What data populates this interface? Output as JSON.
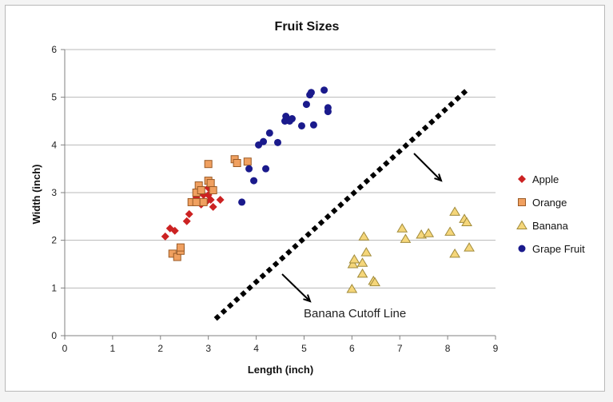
{
  "chart_data": {
    "type": "scatter",
    "title": "Fruit Sizes",
    "xlabel": "Length (inch)",
    "ylabel": "Width  (inch)",
    "xlim": [
      0,
      9
    ],
    "ylim": [
      0,
      6
    ],
    "xticks": [
      "0",
      "1",
      "2",
      "3",
      "4",
      "5",
      "6",
      "7",
      "8",
      "9"
    ],
    "yticks": [
      "0",
      "1",
      "2",
      "3",
      "4",
      "5",
      "6"
    ],
    "grid": "horizontal",
    "legend_position": "right",
    "series": [
      {
        "name": "Apple",
        "marker": "diamond",
        "color": "#cc2222",
        "points": [
          [
            2.1,
            2.08
          ],
          [
            2.2,
            2.25
          ],
          [
            2.3,
            2.2
          ],
          [
            2.55,
            2.4
          ],
          [
            2.6,
            2.55
          ],
          [
            2.75,
            2.9
          ],
          [
            2.9,
            2.95
          ],
          [
            2.95,
            2.8
          ],
          [
            3.0,
            3.1
          ],
          [
            3.0,
            2.95
          ],
          [
            3.05,
            2.85
          ],
          [
            3.1,
            2.7
          ],
          [
            3.25,
            2.85
          ],
          [
            2.85,
            2.75
          ]
        ]
      },
      {
        "name": "Orange",
        "marker": "square",
        "color": "#f0a060",
        "points": [
          [
            2.25,
            1.72
          ],
          [
            2.35,
            1.65
          ],
          [
            2.42,
            1.78
          ],
          [
            2.42,
            1.85
          ],
          [
            2.65,
            2.8
          ],
          [
            2.75,
            3.0
          ],
          [
            2.75,
            2.8
          ],
          [
            2.8,
            3.15
          ],
          [
            2.85,
            3.05
          ],
          [
            2.9,
            2.8
          ],
          [
            3.0,
            3.25
          ],
          [
            3.0,
            3.6
          ],
          [
            3.05,
            3.2
          ],
          [
            3.1,
            3.05
          ],
          [
            3.55,
            3.7
          ],
          [
            3.6,
            3.62
          ],
          [
            3.82,
            3.65
          ]
        ]
      },
      {
        "name": "Banana",
        "marker": "triangle",
        "color": "#f5d67a",
        "points": [
          [
            6.0,
            0.98
          ],
          [
            6.02,
            1.5
          ],
          [
            6.05,
            1.6
          ],
          [
            6.22,
            1.3
          ],
          [
            6.22,
            1.53
          ],
          [
            6.25,
            2.08
          ],
          [
            6.3,
            1.75
          ],
          [
            6.45,
            1.15
          ],
          [
            6.48,
            1.12
          ],
          [
            7.05,
            2.25
          ],
          [
            7.12,
            2.03
          ],
          [
            7.45,
            2.12
          ],
          [
            7.6,
            2.15
          ],
          [
            8.05,
            2.18
          ],
          [
            8.15,
            1.72
          ],
          [
            8.15,
            2.6
          ],
          [
            8.35,
            2.45
          ],
          [
            8.4,
            2.38
          ],
          [
            8.45,
            1.85
          ]
        ]
      },
      {
        "name": "Grape Fruit",
        "marker": "circle",
        "color": "#1a1a8c",
        "points": [
          [
            3.7,
            2.8
          ],
          [
            3.85,
            3.5
          ],
          [
            3.95,
            3.25
          ],
          [
            4.05,
            4.0
          ],
          [
            4.15,
            4.07
          ],
          [
            4.2,
            3.5
          ],
          [
            4.28,
            4.25
          ],
          [
            4.45,
            4.05
          ],
          [
            4.6,
            4.5
          ],
          [
            4.62,
            4.6
          ],
          [
            4.7,
            4.5
          ],
          [
            4.75,
            4.55
          ],
          [
            4.95,
            4.4
          ],
          [
            5.05,
            4.85
          ],
          [
            5.12,
            5.05
          ],
          [
            5.15,
            5.1
          ],
          [
            5.2,
            4.42
          ],
          [
            5.42,
            5.15
          ],
          [
            5.5,
            4.7
          ],
          [
            5.5,
            4.78
          ]
        ]
      }
    ],
    "cutoff_line": {
      "label": "Banana Cutoff Line",
      "from": [
        3.15,
        0.35
      ],
      "to": [
        8.4,
        5.15
      ]
    }
  }
}
